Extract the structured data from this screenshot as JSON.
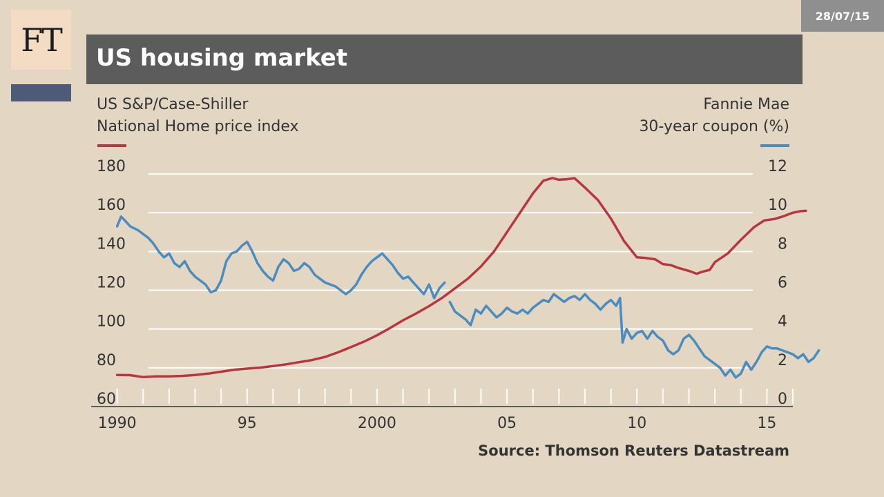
{
  "logo": "FT",
  "date": "28/07/15",
  "title": "US housing market",
  "left_label": [
    "US S&P/Case-Shiller",
    "National Home price index"
  ],
  "right_label": [
    "Fannie Mae",
    "30-year coupon (%)"
  ],
  "source": "Source: Thomson Reuters Datastream",
  "colors": {
    "red": "#b8363f",
    "blue": "#4a8cbf",
    "background": "#e3d6c3",
    "header": "#5c5c5c"
  },
  "chart_data": {
    "type": "line",
    "x_ticks": [
      "1990",
      "95",
      "2000",
      "05",
      "10",
      "15"
    ],
    "x_tick_values": [
      1990,
      1995,
      2000,
      2005,
      2010,
      2015
    ],
    "xlim": [
      1989,
      2016
    ],
    "left_axis": {
      "ticks": [
        "180",
        "160",
        "140",
        "120",
        "100",
        "80",
        "60"
      ],
      "ylim": [
        60,
        180
      ]
    },
    "right_axis": {
      "ticks": [
        "12",
        "10",
        "8",
        "6",
        "4",
        "2",
        "0"
      ],
      "ylim": [
        0,
        12
      ]
    },
    "grid": true,
    "series": [
      {
        "axis": "left",
        "color": "#b8363f",
        "points": [
          [
            1990.0,
            76.3
          ],
          [
            1990.5,
            76.2
          ],
          [
            1991.0,
            75.2
          ],
          [
            1991.5,
            75.6
          ],
          [
            1992.0,
            75.6
          ],
          [
            1992.5,
            75.8
          ],
          [
            1993.0,
            76.3
          ],
          [
            1993.5,
            77.0
          ],
          [
            1994.0,
            78.0
          ],
          [
            1994.5,
            79.0
          ],
          [
            1995.0,
            79.6
          ],
          [
            1995.5,
            80.1
          ],
          [
            1996.0,
            80.9
          ],
          [
            1996.5,
            81.8
          ],
          [
            1997.0,
            82.9
          ],
          [
            1997.5,
            84.0
          ],
          [
            1998.0,
            85.6
          ],
          [
            1998.5,
            88.0
          ],
          [
            1999.0,
            90.7
          ],
          [
            1999.5,
            93.5
          ],
          [
            2000.0,
            96.8
          ],
          [
            2000.5,
            100.5
          ],
          [
            2001.0,
            104.5
          ],
          [
            2001.5,
            108.0
          ],
          [
            2002.0,
            111.8
          ],
          [
            2002.5,
            116.0
          ],
          [
            2003.0,
            121.0
          ],
          [
            2003.5,
            126.0
          ],
          [
            2004.0,
            132.3
          ],
          [
            2004.5,
            140.0
          ],
          [
            2005.0,
            150.0
          ],
          [
            2005.5,
            160.0
          ],
          [
            2006.0,
            170.0
          ],
          [
            2006.4,
            176.5
          ],
          [
            2006.75,
            177.9
          ],
          [
            2007.0,
            177.0
          ],
          [
            2007.3,
            177.3
          ],
          [
            2007.6,
            177.8
          ],
          [
            2008.0,
            173.0
          ],
          [
            2008.5,
            166.5
          ],
          [
            2009.0,
            157.0
          ],
          [
            2009.5,
            145.5
          ],
          [
            2010.0,
            137.0
          ],
          [
            2010.3,
            136.7
          ],
          [
            2010.7,
            136.0
          ],
          [
            2011.0,
            133.5
          ],
          [
            2011.3,
            133.0
          ],
          [
            2011.6,
            131.5
          ],
          [
            2012.0,
            130.0
          ],
          [
            2012.3,
            128.5
          ],
          [
            2012.5,
            129.5
          ],
          [
            2012.8,
            130.5
          ],
          [
            2013.0,
            134.5
          ],
          [
            2013.5,
            139.0
          ],
          [
            2014.0,
            146.0
          ],
          [
            2014.5,
            152.5
          ],
          [
            2014.9,
            156.0
          ],
          [
            2015.3,
            156.8
          ],
          [
            2015.6,
            158.0
          ],
          [
            2015.8,
            159.0
          ],
          [
            2016.0,
            160.0
          ],
          [
            2016.3,
            160.8
          ],
          [
            2016.5,
            161.0
          ]
        ]
      },
      {
        "axis": "right",
        "color": "#4a8cbf",
        "points": [
          [
            1990.0,
            9.3
          ],
          [
            1990.15,
            9.8
          ],
          [
            1990.3,
            9.6
          ],
          [
            1990.5,
            9.3
          ],
          [
            1990.8,
            9.1
          ],
          [
            1991.0,
            8.9
          ],
          [
            1991.2,
            8.7
          ],
          [
            1991.4,
            8.4
          ],
          [
            1991.6,
            8.0
          ],
          [
            1991.8,
            7.7
          ],
          [
            1992.0,
            7.9
          ],
          [
            1992.2,
            7.4
          ],
          [
            1992.4,
            7.2
          ],
          [
            1992.6,
            7.5
          ],
          [
            1992.8,
            7.0
          ],
          [
            1993.0,
            6.7
          ],
          [
            1993.2,
            6.5
          ],
          [
            1993.4,
            6.3
          ],
          [
            1993.6,
            5.9
          ],
          [
            1993.8,
            6.0
          ],
          [
            1994.0,
            6.5
          ],
          [
            1994.2,
            7.5
          ],
          [
            1994.4,
            7.9
          ],
          [
            1994.6,
            8.0
          ],
          [
            1994.8,
            8.3
          ],
          [
            1995.0,
            8.5
          ],
          [
            1995.2,
            8.0
          ],
          [
            1995.4,
            7.4
          ],
          [
            1995.6,
            7.0
          ],
          [
            1995.8,
            6.7
          ],
          [
            1996.0,
            6.5
          ],
          [
            1996.2,
            7.2
          ],
          [
            1996.4,
            7.6
          ],
          [
            1996.6,
            7.4
          ],
          [
            1996.8,
            7.0
          ],
          [
            1997.0,
            7.1
          ],
          [
            1997.2,
            7.4
          ],
          [
            1997.4,
            7.2
          ],
          [
            1997.6,
            6.8
          ],
          [
            1997.8,
            6.6
          ],
          [
            1998.0,
            6.4
          ],
          [
            1998.2,
            6.3
          ],
          [
            1998.4,
            6.2
          ],
          [
            1998.6,
            6.0
          ],
          [
            1998.8,
            5.8
          ],
          [
            1999.0,
            6.0
          ],
          [
            1999.2,
            6.3
          ],
          [
            1999.4,
            6.8
          ],
          [
            1999.6,
            7.2
          ],
          [
            1999.8,
            7.5
          ],
          [
            2000.0,
            7.7
          ],
          [
            2000.2,
            7.9
          ],
          [
            2000.4,
            7.6
          ],
          [
            2000.6,
            7.3
          ],
          [
            2000.8,
            6.9
          ],
          [
            2001.0,
            6.6
          ],
          [
            2001.2,
            6.7
          ],
          [
            2001.4,
            6.4
          ],
          [
            2001.6,
            6.1
          ],
          [
            2001.8,
            5.8
          ],
          [
            2002.0,
            6.3
          ],
          [
            2002.2,
            5.6
          ],
          [
            2002.4,
            6.1
          ],
          [
            2002.6,
            6.4
          ]
        ]
      },
      {
        "axis": "right",
        "color": "#4a8cbf",
        "points": [
          [
            2002.8,
            5.4
          ],
          [
            2003.0,
            4.9
          ],
          [
            2003.2,
            4.7
          ],
          [
            2003.4,
            4.5
          ],
          [
            2003.6,
            4.2
          ],
          [
            2003.8,
            5.0
          ],
          [
            2004.0,
            4.8
          ],
          [
            2004.2,
            5.2
          ],
          [
            2004.4,
            4.9
          ],
          [
            2004.6,
            4.6
          ],
          [
            2004.8,
            4.8
          ],
          [
            2005.0,
            5.1
          ],
          [
            2005.2,
            4.9
          ],
          [
            2005.4,
            4.8
          ],
          [
            2005.6,
            5.0
          ],
          [
            2005.8,
            4.8
          ],
          [
            2006.0,
            5.1
          ],
          [
            2006.2,
            5.3
          ],
          [
            2006.4,
            5.5
          ],
          [
            2006.6,
            5.4
          ],
          [
            2006.8,
            5.8
          ],
          [
            2007.0,
            5.6
          ],
          [
            2007.2,
            5.4
          ],
          [
            2007.4,
            5.6
          ],
          [
            2007.6,
            5.7
          ],
          [
            2007.8,
            5.5
          ],
          [
            2008.0,
            5.8
          ],
          [
            2008.2,
            5.5
          ],
          [
            2008.4,
            5.3
          ],
          [
            2008.6,
            5.0
          ],
          [
            2008.8,
            5.3
          ],
          [
            2009.0,
            5.5
          ],
          [
            2009.2,
            5.2
          ],
          [
            2009.35,
            5.6
          ],
          [
            2009.45,
            3.3
          ],
          [
            2009.6,
            4.0
          ],
          [
            2009.8,
            3.5
          ],
          [
            2010.0,
            3.8
          ],
          [
            2010.2,
            3.9
          ],
          [
            2010.4,
            3.5
          ],
          [
            2010.6,
            3.9
          ],
          [
            2010.8,
            3.6
          ],
          [
            2011.0,
            3.4
          ],
          [
            2011.2,
            2.9
          ],
          [
            2011.4,
            2.7
          ],
          [
            2011.6,
            2.9
          ],
          [
            2011.8,
            3.5
          ],
          [
            2012.0,
            3.7
          ],
          [
            2012.2,
            3.4
          ],
          [
            2012.4,
            3.0
          ],
          [
            2012.6,
            2.6
          ],
          [
            2012.8,
            2.4
          ],
          [
            2013.0,
            2.2
          ],
          [
            2013.2,
            2.0
          ],
          [
            2013.4,
            1.6
          ],
          [
            2013.6,
            1.9
          ],
          [
            2013.8,
            1.5
          ],
          [
            2014.0,
            1.7
          ],
          [
            2014.2,
            2.3
          ],
          [
            2014.4,
            1.9
          ],
          [
            2014.6,
            2.3
          ],
          [
            2014.8,
            2.8
          ],
          [
            2015.0,
            3.1
          ],
          [
            2015.2,
            3.0
          ],
          [
            2015.4,
            3.0
          ],
          [
            2015.6,
            2.9
          ],
          [
            2015.8,
            2.8
          ],
          [
            2016.0,
            2.7
          ],
          [
            2016.2,
            2.5
          ],
          [
            2016.4,
            2.7
          ],
          [
            2016.6,
            2.3
          ],
          [
            2016.8,
            2.5
          ],
          [
            2017.0,
            2.9
          ]
        ]
      }
    ]
  }
}
